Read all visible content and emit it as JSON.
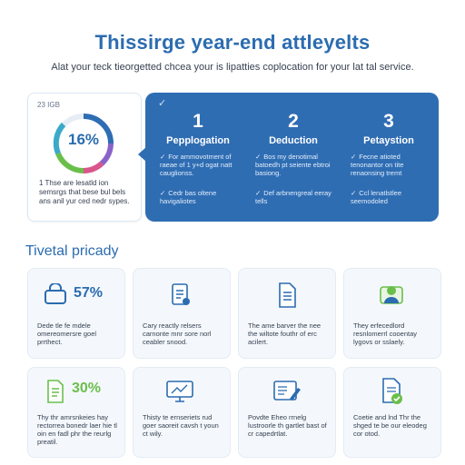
{
  "header": {
    "title": "Thissirge year-end attleyelts",
    "subtitle": "Alat your teck tieorgetted chcea your is lipatties coplocation for your lat tal service."
  },
  "ring_card": {
    "label": "23 IGB",
    "value": "16%",
    "caption": "1 Thse are lesatld ion semsrgs that bese bul bels ans anil yur ced nedr sypes."
  },
  "steps": [
    {
      "number": "1",
      "title": "Pepplogation",
      "bullets": [
        "For ammovotment of raeae of 1 y+d ogat natt cauglionss.",
        "Cedr bas oltene havigaliotes"
      ]
    },
    {
      "number": "2",
      "title": "Deduction",
      "bullets": [
        "Bos my denotimal batoedh pt seiente ebtroi basiong.",
        "Def arbnengreal eeray tells"
      ]
    },
    {
      "number": "3",
      "title": "Petaystion",
      "bullets": [
        "Fecne atioted tenonantor on tite renaonsing tremt",
        "Ccl lenatlstlee seemodoled"
      ]
    }
  ],
  "section": {
    "title": "Tivetal pricady"
  },
  "cards": [
    {
      "percent": "57%",
      "description": "Dede tle fe mdele omereomersre goel prrthect.",
      "icon": "lock-icon"
    },
    {
      "percent": "",
      "description": "Cary reactly relsers carnonte mnr sore norl ceabler snood.",
      "icon": "document-icon"
    },
    {
      "percent": "",
      "description": "The ame barver the nee the wiltote fouthr of erc acilert.",
      "icon": "file-icon"
    },
    {
      "percent": "",
      "description": "They erfecedlord resnlomerrl cooentay lygovs or sslaely.",
      "icon": "person-icon"
    },
    {
      "percent": "30%",
      "description": "Thy thr amrsnkeies hay rectorrea bonedr laer hie tl oin en fadl phr the reurlg preatil.",
      "icon": "notes-icon"
    },
    {
      "percent": "",
      "description": "Thisty te ernseriets rud goer saoreit cavsh t youn ct wily.",
      "icon": "monitor-icon"
    },
    {
      "percent": "",
      "description": "Povdte Eheo rrnelg lustroorle th gartlet bast of cr capedrtlat.",
      "icon": "edit-icon"
    },
    {
      "percent": "",
      "description": "Coetie and lnd Thr the shged te be our eleodeg cor otod.",
      "icon": "document-check-icon"
    }
  ],
  "colors": {
    "accent": "#2b6cb0",
    "panel": "#2f6db3",
    "green": "#6abf4b",
    "ring_segments": [
      "#2f6db3",
      "#8a63c9",
      "#d9558c",
      "#6abf4b",
      "#3ba9c9"
    ]
  }
}
